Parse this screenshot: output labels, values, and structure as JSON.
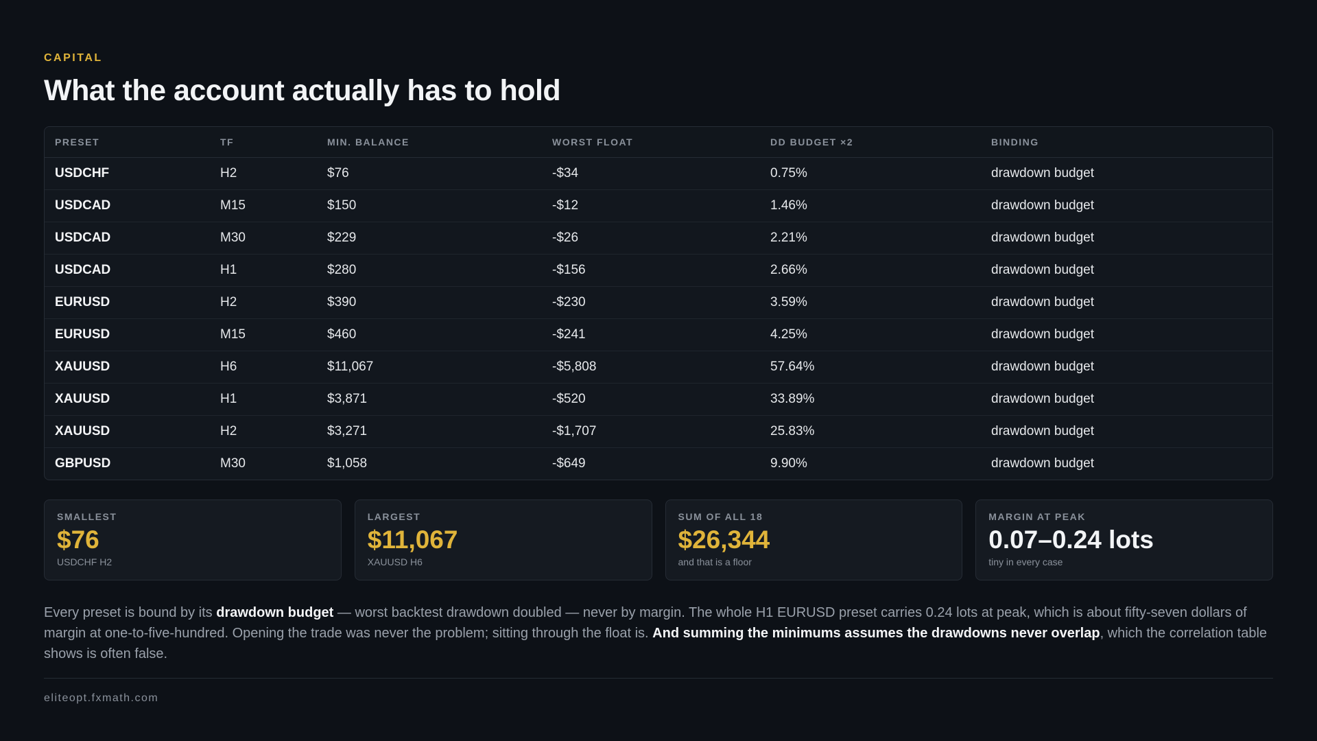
{
  "header": {
    "eyebrow": "CAPITAL",
    "title": "What the account actually has to hold"
  },
  "table": {
    "columns": [
      "PRESET",
      "TF",
      "MIN. BALANCE",
      "WORST FLOAT",
      "DD BUDGET ×2",
      "BINDING"
    ],
    "rows": [
      [
        "USDCHF",
        "H2",
        "$76",
        "-$34",
        "0.75%",
        "drawdown budget"
      ],
      [
        "USDCAD",
        "M15",
        "$150",
        "-$12",
        "1.46%",
        "drawdown budget"
      ],
      [
        "USDCAD",
        "M30",
        "$229",
        "-$26",
        "2.21%",
        "drawdown budget"
      ],
      [
        "USDCAD",
        "H1",
        "$280",
        "-$156",
        "2.66%",
        "drawdown budget"
      ],
      [
        "EURUSD",
        "H2",
        "$390",
        "-$230",
        "3.59%",
        "drawdown budget"
      ],
      [
        "EURUSD",
        "M15",
        "$460",
        "-$241",
        "4.25%",
        "drawdown budget"
      ],
      [
        "XAUUSD",
        "H6",
        "$11,067",
        "-$5,808",
        "57.64%",
        "drawdown budget"
      ],
      [
        "XAUUSD",
        "H1",
        "$3,871",
        "-$520",
        "33.89%",
        "drawdown budget"
      ],
      [
        "XAUUSD",
        "H2",
        "$3,271",
        "-$1,707",
        "25.83%",
        "drawdown budget"
      ],
      [
        "GBPUSD",
        "M30",
        "$1,058",
        "-$649",
        "9.90%",
        "drawdown budget"
      ]
    ]
  },
  "stats": [
    {
      "label": "SMALLEST",
      "value": "$76",
      "sub": "USDCHF H2"
    },
    {
      "label": "LARGEST",
      "value": "$11,067",
      "sub": "XAUUSD H6"
    },
    {
      "label": "SUM OF ALL 18",
      "value": "$26,344",
      "sub": "and that is a floor"
    },
    {
      "label": "MARGIN AT PEAK",
      "value": "0.07–0.24 lots",
      "sub": "tiny in every case"
    }
  ],
  "body": {
    "part1": "Every preset is bound by its ",
    "bold1": "drawdown budget",
    "part2": " — worst backtest drawdown doubled — never by margin. The whole H1 EURUSD preset carries 0.24 lots at peak, which is about fifty-seven dollars of margin at one-to-five-hundred. Opening the trade was never the problem; sitting through the float is. ",
    "bold2": "And summing the minimums assumes the drawdowns never overlap",
    "part3": ", which the correlation table shows is often false."
  },
  "footer": {
    "site": "eliteopt.fxmath.com"
  },
  "colors": {
    "background": "#0d1117",
    "accent": "#e0b43a",
    "text": "#e6e8eb",
    "muted": "#8a919b"
  }
}
